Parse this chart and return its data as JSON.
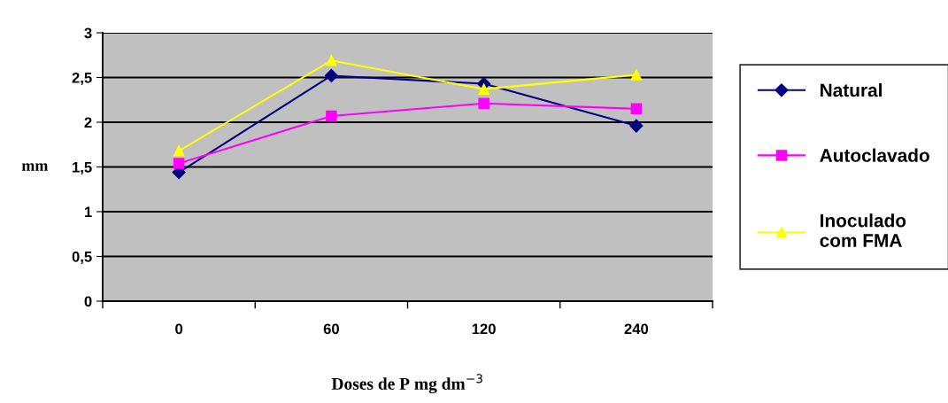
{
  "chart_data": {
    "type": "line",
    "xlabel": "Doses de P mg dm$^{−3}$",
    "ylabel": "mm",
    "categories": [
      "0",
      "60",
      "120",
      "240"
    ],
    "series": [
      {
        "name": "Natural",
        "color": "#000080",
        "marker": "diamond",
        "values": [
          1.44,
          2.52,
          2.43,
          1.96
        ]
      },
      {
        "name": "Autoclavado",
        "color": "#ff00ff",
        "marker": "square",
        "values": [
          1.54,
          2.07,
          2.21,
          2.15
        ]
      },
      {
        "name": "Inoculado\ncom FMA",
        "color": "#ffff00",
        "marker": "triangle",
        "values": [
          1.68,
          2.69,
          2.37,
          2.53
        ]
      }
    ],
    "ylim": [
      0,
      3
    ],
    "yticks": [
      0,
      {
        "value": 0.5,
        "label": "0,5"
      },
      1,
      {
        "value": 1.5,
        "label": "1,5"
      },
      2,
      {
        "value": 2.5,
        "label": "2,5"
      },
      3
    ],
    "grid": "y",
    "legend": "right",
    "line_style": "solid"
  }
}
